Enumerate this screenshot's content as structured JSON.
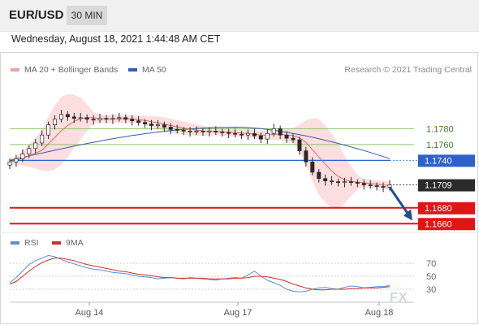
{
  "header": {
    "symbol": "EUR/USD",
    "timeframe": "30 MIN"
  },
  "datetime": "Wednesday, August 18, 2021 1:44:48 AM CET",
  "legend": {
    "ma20_bb": "MA 20 + Bollinger Bands",
    "ma50": "MA 50"
  },
  "credit": "Research © 2021 Trading Central",
  "rsi_legend": {
    "rsi": "RSI",
    "ma9": "9MA"
  },
  "watermark": "FX",
  "colors": {
    "bull": "#2a2a2a",
    "bear": "#2a2a2a",
    "ma20": "#d86a6a",
    "bollinger_fill": "#fbd3d3",
    "ma50": "#3a5aa8",
    "green_level": "#8ec46a",
    "blue_level": "#2d62c9",
    "red_level": "#e01515",
    "current": "#2b2b2b",
    "arrow": "#1f4e8c",
    "rsi_line": "#5b8fd6",
    "rsi_ma": "#d22d2d"
  },
  "chart_data": [
    {
      "type": "candlestick",
      "title": "EUR/USD 30 MIN",
      "ylim": [
        1.165,
        1.184
      ],
      "x_labels": [
        "Aug 14",
        "Aug 17",
        "Aug 18"
      ],
      "levels": [
        {
          "price": 1.178,
          "label": "1.1780",
          "kind": "resistance"
        },
        {
          "price": 1.176,
          "label": "1.1760",
          "kind": "resistance"
        },
        {
          "price": 1.174,
          "label": "1.1740",
          "kind": "pivot"
        },
        {
          "price": 1.1709,
          "label": "1.1709",
          "kind": "current"
        },
        {
          "price": 1.168,
          "label": "1.1680",
          "kind": "support"
        },
        {
          "price": 1.166,
          "label": "1.1660",
          "kind": "support"
        }
      ],
      "closes": [
        1.1738,
        1.1742,
        1.1748,
        1.1755,
        1.1762,
        1.1772,
        1.1785,
        1.1792,
        1.1798,
        1.1795,
        1.1793,
        1.1794,
        1.1792,
        1.1791,
        1.1793,
        1.1792,
        1.1793,
        1.1794,
        1.1792,
        1.179,
        1.1788,
        1.1786,
        1.1784,
        1.1785,
        1.1782,
        1.1779,
        1.1778,
        1.1777,
        1.1776,
        1.1777,
        1.1776,
        1.1777,
        1.1776,
        1.1775,
        1.1774,
        1.1773,
        1.1772,
        1.1774,
        1.1771,
        1.1767,
        1.1774,
        1.178,
        1.1772,
        1.1768,
        1.1766,
        1.1752,
        1.1738,
        1.1725,
        1.1717,
        1.1714,
        1.1713,
        1.1712,
        1.1713,
        1.1712,
        1.1711,
        1.1709,
        1.1708,
        1.1707,
        1.1706,
        1.1709
      ],
      "bands": {
        "upper_max": 1.1795,
        "lower_min": 1.17
      },
      "ma50_range": [
        1.174,
        1.1782
      ]
    },
    {
      "type": "line",
      "title": "RSI",
      "ylim": [
        10,
        90
      ],
      "y_ticks": [
        30,
        50,
        70
      ],
      "series": [
        {
          "name": "RSI",
          "values": [
            40,
            48,
            58,
            68,
            74,
            78,
            82,
            80,
            76,
            72,
            69,
            66,
            63,
            61,
            60,
            58,
            56,
            55,
            54,
            52,
            50,
            49,
            48,
            46,
            47,
            48,
            47,
            46,
            48,
            47,
            46,
            45,
            44,
            46,
            47,
            48,
            47,
            52,
            58,
            50,
            44,
            40,
            36,
            30,
            27,
            26,
            27,
            30,
            32,
            33,
            31,
            30,
            33,
            35,
            34,
            32,
            33,
            34,
            34,
            36
          ]
        },
        {
          "name": "9MA",
          "values": [
            38,
            42,
            50,
            58,
            65,
            71,
            75,
            78,
            78,
            76,
            74,
            71,
            68,
            66,
            64,
            62,
            60,
            58,
            57,
            55,
            53,
            52,
            51,
            49,
            48,
            48,
            47,
            47,
            47,
            47,
            47,
            46,
            46,
            46,
            46,
            47,
            47,
            48,
            50,
            50,
            49,
            47,
            45,
            42,
            38,
            35,
            32,
            30,
            29,
            29,
            30,
            30,
            30,
            31,
            31,
            32,
            32,
            32,
            33,
            34
          ]
        }
      ]
    }
  ]
}
